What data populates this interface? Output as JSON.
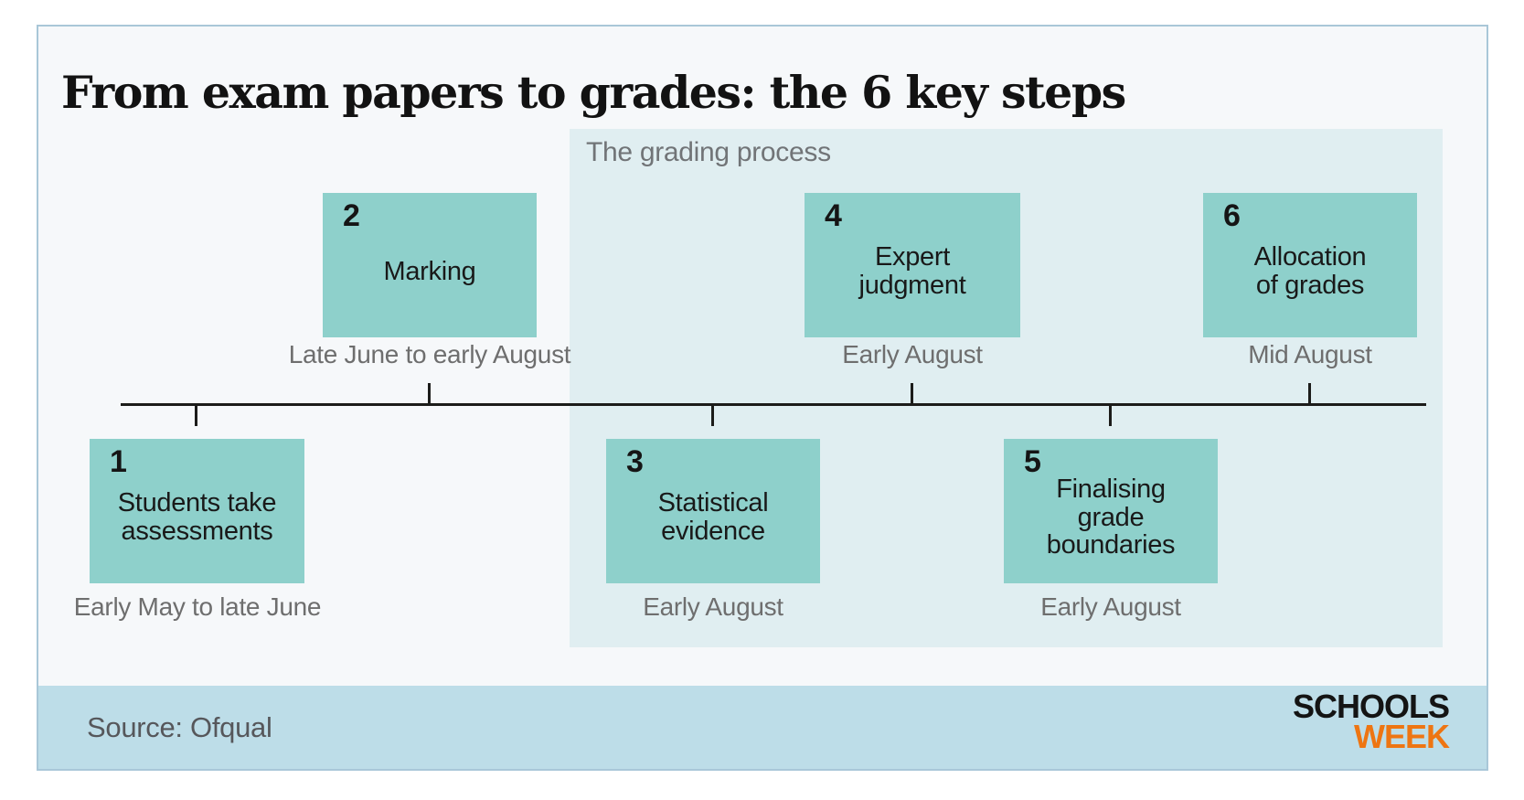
{
  "title": "From exam papers to grades: the 6 key steps",
  "grading_process": {
    "label": "The grading process"
  },
  "steps": [
    {
      "number": "1",
      "label": "Students take\nassessments",
      "date": "Early May to late June",
      "position": "below"
    },
    {
      "number": "2",
      "label": "Marking",
      "date": "Late June to early August",
      "position": "above"
    },
    {
      "number": "3",
      "label": "Statistical\nevidence",
      "date": "Early August",
      "position": "below"
    },
    {
      "number": "4",
      "label": "Expert\njudgment",
      "date": "Early August",
      "position": "above"
    },
    {
      "number": "5",
      "label": "Finalising\ngrade\nboundaries",
      "date": "Early August",
      "position": "below"
    },
    {
      "number": "6",
      "label": "Allocation\nof grades",
      "date": "Mid August",
      "position": "above"
    }
  ],
  "footer": {
    "source": "Source: Ofqual",
    "logo": {
      "line1": "SCHOOLS",
      "line2": "WEEK"
    }
  },
  "colors": {
    "step_box": "#8ed0cb",
    "grading_panel": "#e0eef1",
    "card_background": "#f6f8fa",
    "card_border": "#a9c7d8",
    "footer_band": "#bddde8",
    "logo_week_orange": "#ee7512",
    "timeline": "#1c1c1a",
    "date_text": "#6e6e6e"
  }
}
